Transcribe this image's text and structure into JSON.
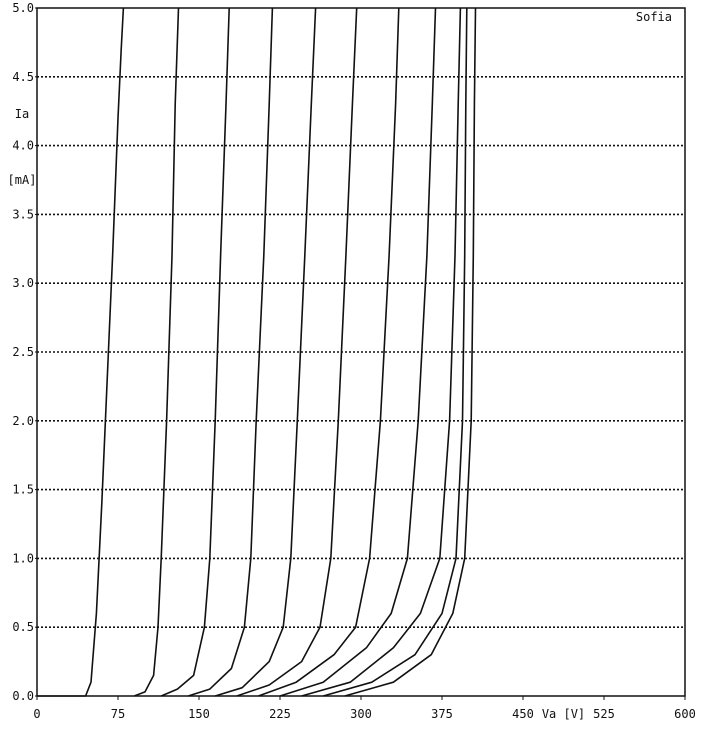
{
  "chart_data": {
    "type": "line",
    "title": "",
    "annotation": "Sofia",
    "xlabel": "Va [V]",
    "ylabel": "Ia",
    "ylabel_unit": "[mA]",
    "xlim": [
      0,
      600
    ],
    "ylim": [
      0,
      5.0
    ],
    "x_ticks": [
      "0",
      "75",
      "150",
      "225",
      "300",
      "375",
      "450",
      "525",
      "600"
    ],
    "y_ticks": [
      "0.0",
      "0.5",
      "1.0",
      "1.5",
      "2.0",
      "2.5",
      "3.0",
      "3.5",
      "4.0",
      "4.5",
      "5.0"
    ],
    "grid": "horizontal dotted",
    "series": [
      {
        "x": [
          0,
          45,
          50,
          55,
          60,
          65,
          70,
          75,
          78,
          80
        ],
        "y": [
          0,
          0,
          0.1,
          0.6,
          1.4,
          2.3,
          3.2,
          4.2,
          4.7,
          5.0
        ]
      },
      {
        "x": [
          90,
          100,
          108,
          112,
          115,
          120,
          125,
          128,
          131
        ],
        "y": [
          0,
          0.03,
          0.15,
          0.5,
          1.0,
          2.0,
          3.2,
          4.3,
          5.0
        ]
      },
      {
        "x": [
          115,
          130,
          145,
          155,
          160,
          165,
          170,
          175,
          178
        ],
        "y": [
          0,
          0.05,
          0.15,
          0.5,
          1.0,
          2.0,
          3.2,
          4.3,
          5.0
        ]
      },
      {
        "x": [
          140,
          160,
          180,
          192,
          198,
          203,
          210,
          215,
          218
        ],
        "y": [
          0,
          0.05,
          0.2,
          0.5,
          1.0,
          2.0,
          3.2,
          4.3,
          5.0
        ]
      },
      {
        "x": [
          165,
          190,
          215,
          228,
          235,
          241,
          248,
          254,
          258
        ],
        "y": [
          0,
          0.06,
          0.25,
          0.5,
          1.0,
          2.0,
          3.2,
          4.3,
          5.0
        ]
      },
      {
        "x": [
          185,
          215,
          245,
          262,
          272,
          279,
          286,
          292,
          296
        ],
        "y": [
          0,
          0.08,
          0.25,
          0.5,
          1.0,
          2.0,
          3.2,
          4.3,
          5.0
        ]
      },
      {
        "x": [
          205,
          240,
          275,
          295,
          308,
          318,
          326,
          332,
          335
        ],
        "y": [
          0,
          0.1,
          0.3,
          0.5,
          1.0,
          2.0,
          3.2,
          4.3,
          5.0
        ]
      },
      {
        "x": [
          225,
          265,
          305,
          328,
          343,
          353,
          361,
          366,
          369
        ],
        "y": [
          0,
          0.1,
          0.35,
          0.6,
          1.0,
          2.0,
          3.2,
          4.3,
          5.0
        ]
      },
      {
        "x": [
          245,
          290,
          330,
          355,
          373,
          382,
          387,
          390,
          392
        ],
        "y": [
          0,
          0.1,
          0.35,
          0.6,
          1.0,
          2.0,
          3.2,
          4.3,
          5.0
        ]
      },
      {
        "x": [
          265,
          310,
          350,
          375,
          388,
          394,
          396,
          397,
          398
        ],
        "y": [
          0,
          0.1,
          0.3,
          0.6,
          1.0,
          2.0,
          3.2,
          4.3,
          5.0
        ]
      },
      {
        "x": [
          285,
          330,
          365,
          385,
          396,
          402,
          404,
          405,
          406
        ],
        "y": [
          0,
          0.1,
          0.3,
          0.6,
          1.0,
          2.0,
          3.2,
          4.3,
          5.0
        ]
      }
    ]
  }
}
